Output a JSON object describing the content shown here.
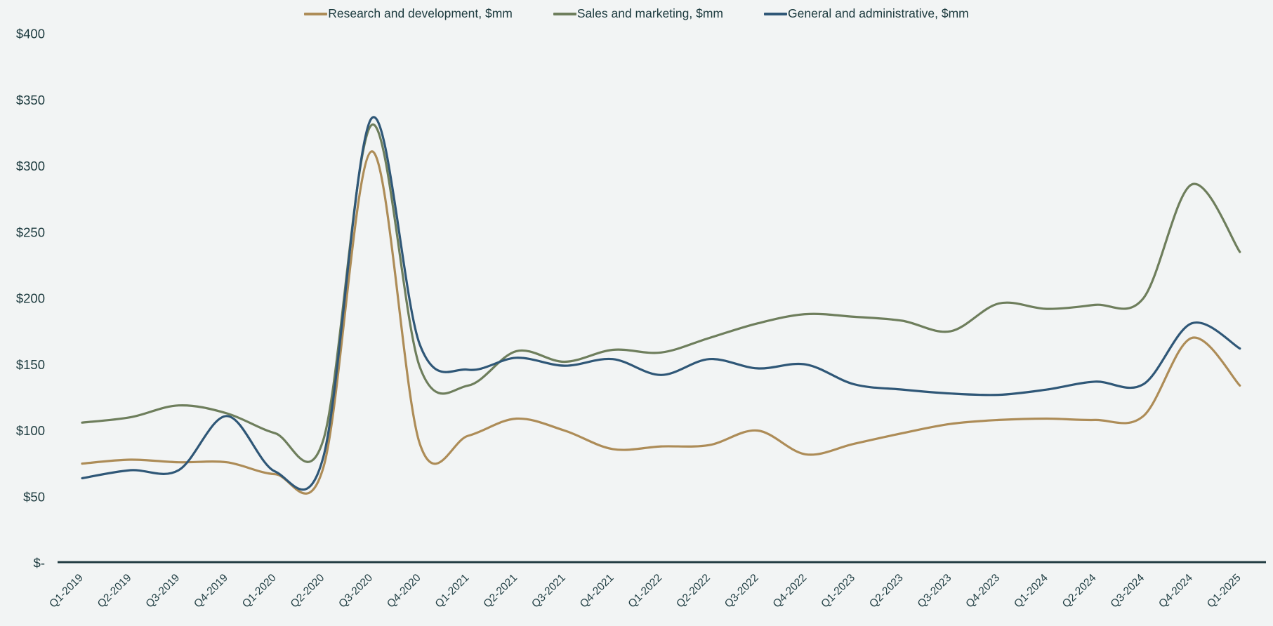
{
  "page": {
    "background": "#f2f4f4",
    "text_color": "#1c3a3e"
  },
  "legend": {
    "position": "top-center",
    "items": [
      {
        "label": "Research and development, $mm",
        "color": "#ad8c57"
      },
      {
        "label": "Sales and marketing, $mm",
        "color": "#6e7e5c"
      },
      {
        "label": "General and administrative, $mm",
        "color": "#2f5777"
      }
    ]
  },
  "chart_data": {
    "type": "line",
    "smooth": true,
    "title": "",
    "xlabel": "",
    "ylabel": "",
    "grid": false,
    "legend_position": "top",
    "axis_color": "#223c42",
    "text_color": "#1c3a3e",
    "categories": [
      "Q1-2019",
      "Q2-2019",
      "Q3-2019",
      "Q4-2019",
      "Q1-2020",
      "Q2-2020",
      "Q3-2020",
      "Q4-2020",
      "Q1-2021",
      "Q2-2021",
      "Q3-2021",
      "Q4-2021",
      "Q1-2022",
      "Q2-2022",
      "Q3-2022",
      "Q4-2022",
      "Q1-2023",
      "Q2-2023",
      "Q3-2023",
      "Q4-2023",
      "Q1-2024",
      "Q2-2024",
      "Q3-2024",
      "Q4-2024",
      "Q1-2025"
    ],
    "series": [
      {
        "name": "Research and development, $mm",
        "color": "#ad8c57",
        "values": [
          75,
          78,
          76,
          76,
          67,
          72,
          311,
          90,
          96,
          109,
          100,
          86,
          88,
          89,
          100,
          82,
          90,
          98,
          105,
          108,
          109,
          108,
          111,
          170,
          134
        ]
      },
      {
        "name": "Sales and marketing, $mm",
        "color": "#6e7e5c",
        "values": [
          106,
          110,
          119,
          113,
          98,
          93,
          331,
          148,
          134,
          160,
          152,
          161,
          159,
          170,
          181,
          188,
          186,
          183,
          175,
          196,
          192,
          195,
          200,
          286,
          235
        ]
      },
      {
        "name": "General and administrative, $mm",
        "color": "#2f5777",
        "values": [
          64,
          70,
          70,
          111,
          69,
          80,
          336,
          165,
          146,
          155,
          149,
          154,
          142,
          154,
          147,
          150,
          135,
          131,
          128,
          127,
          131,
          137,
          135,
          181,
          162
        ]
      }
    ],
    "y_axis": {
      "min": 0,
      "max": 400,
      "tick_step": 50,
      "tick_labels": [
        "$-",
        "$50",
        "$100",
        "$150",
        "$200",
        "$250",
        "$300",
        "$350",
        "$400"
      ],
      "currency_format": "accounting"
    },
    "x_axis": {
      "labels_rotated_degrees": 45
    }
  }
}
